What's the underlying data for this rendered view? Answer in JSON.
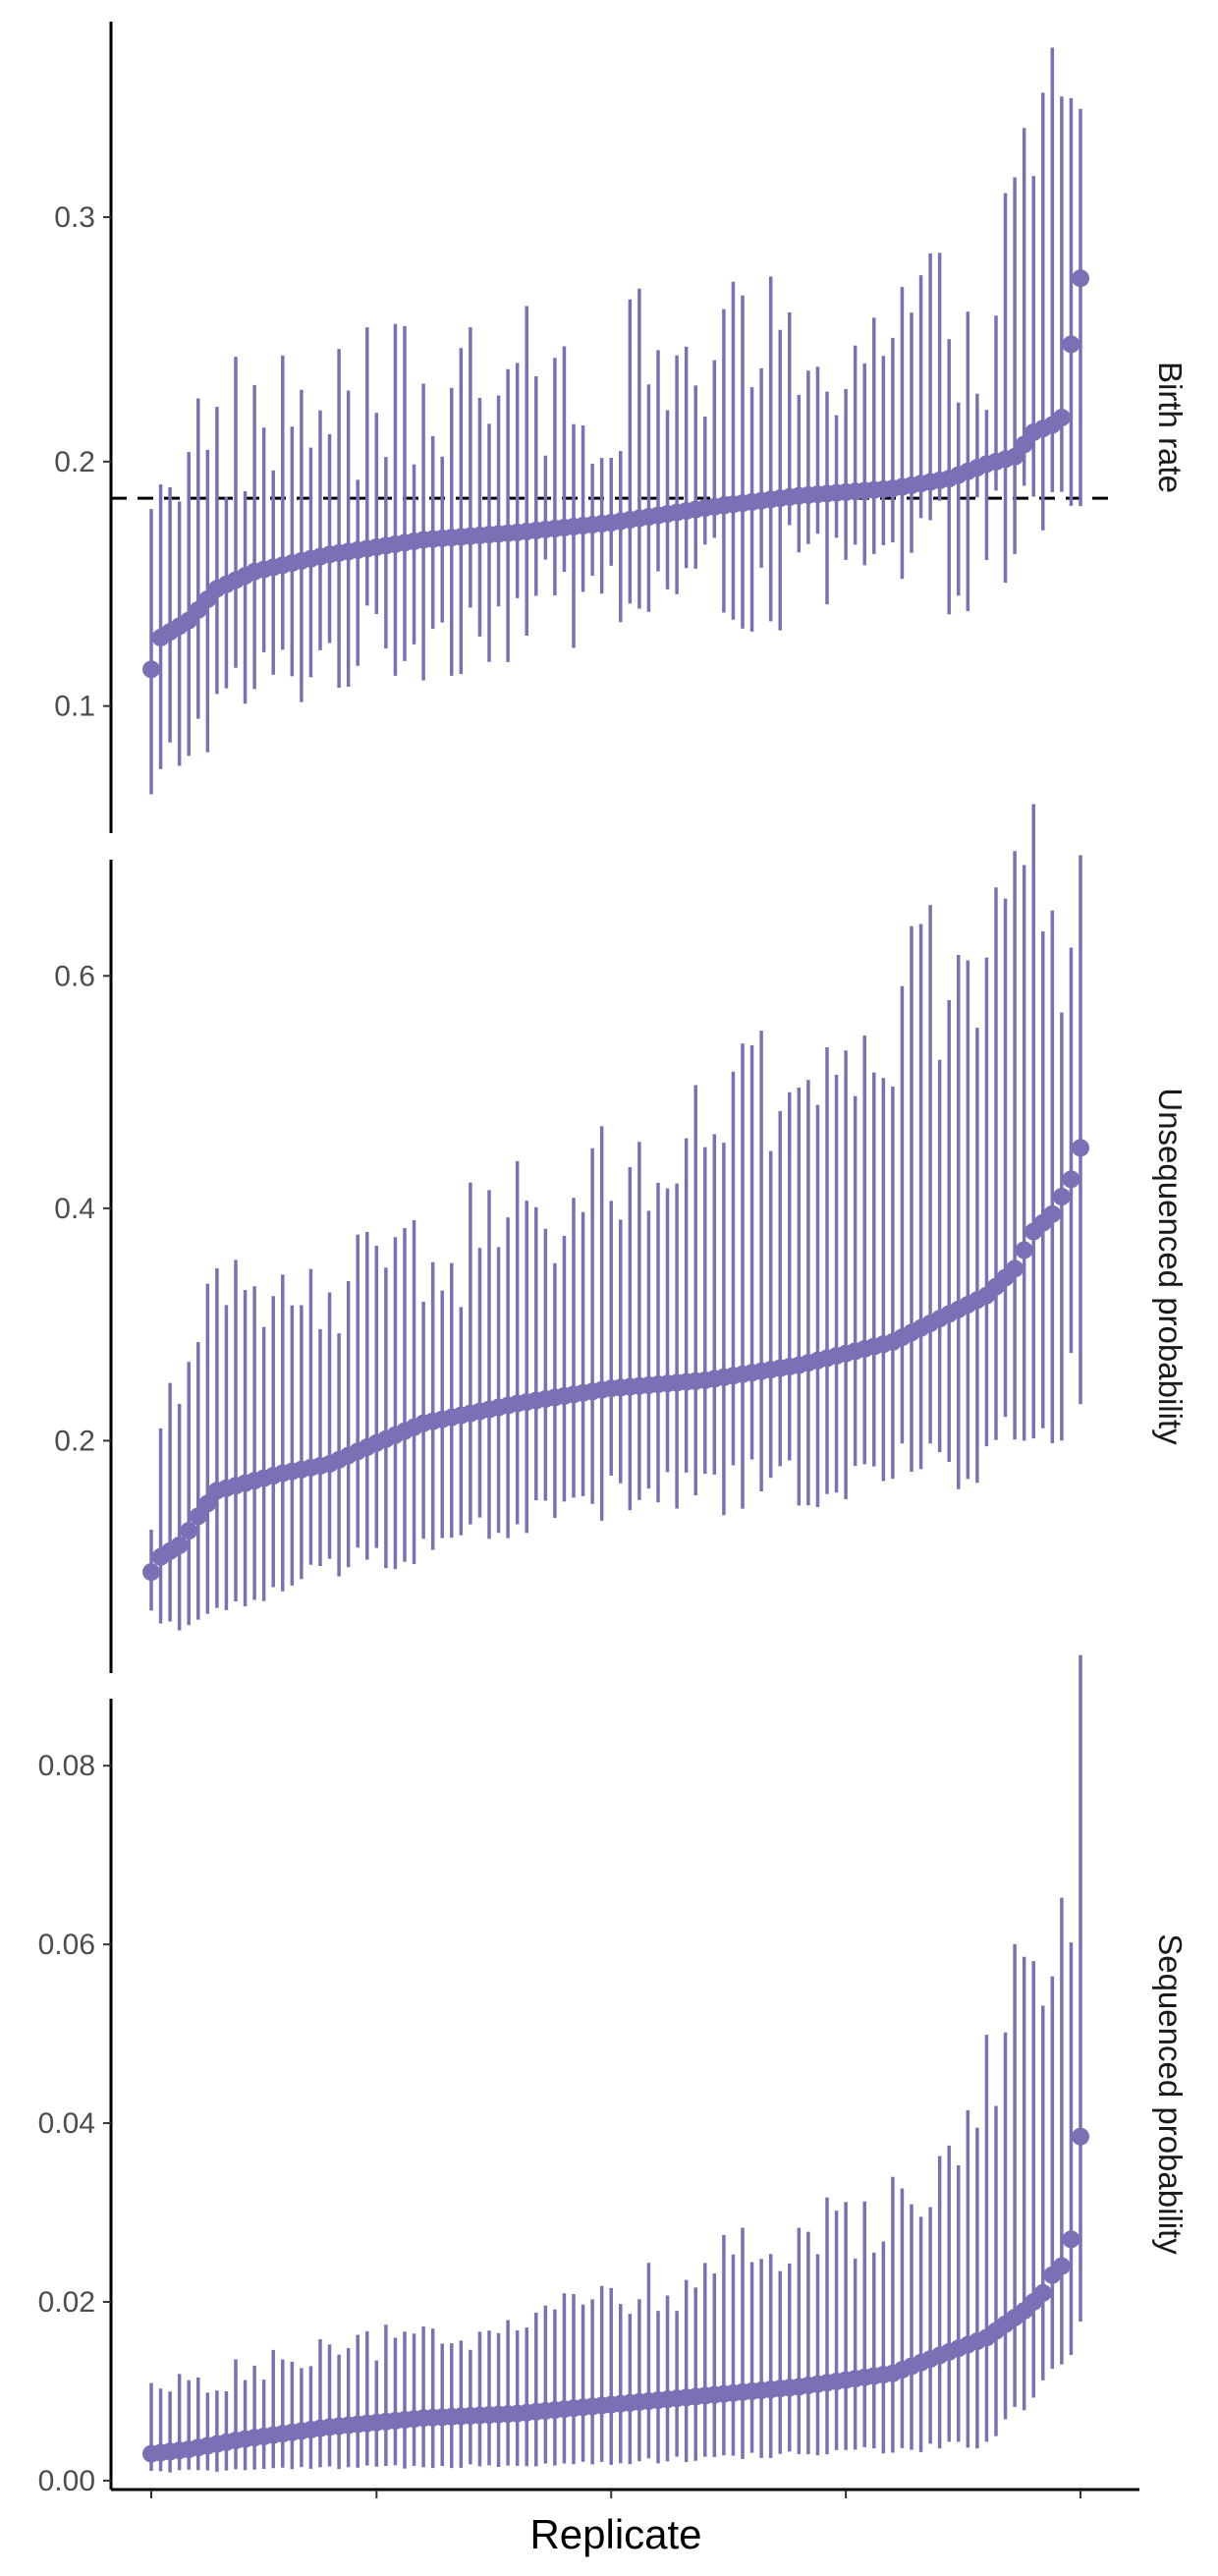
{
  "chart_data": {
    "type": "scatter",
    "layout": "faceted point-range (point estimate with interval), replicates sorted by estimate within each panel",
    "xlabel": "Replicate",
    "x_ticks": [
      1,
      25,
      50,
      75,
      100
    ],
    "x_tick_labels": false,
    "grid": false,
    "color": "#7b70b5",
    "reference_line_color": "#000000",
    "panels": [
      {
        "label": "Birth rate",
        "ylim": [
          0.048,
          0.38
        ],
        "y_ticks": [
          0.1,
          0.2,
          0.3
        ],
        "y_tick_labels": [
          "0.1",
          "0.2",
          "0.3"
        ],
        "reference_line": 0.185,
        "n_points": 100,
        "estimate_knots": [
          [
            1,
            0.115
          ],
          [
            2,
            0.128
          ],
          [
            5,
            0.135
          ],
          [
            8,
            0.148
          ],
          [
            12,
            0.155
          ],
          [
            20,
            0.162
          ],
          [
            30,
            0.168
          ],
          [
            40,
            0.171
          ],
          [
            50,
            0.175
          ],
          [
            60,
            0.181
          ],
          [
            70,
            0.186
          ],
          [
            80,
            0.189
          ],
          [
            86,
            0.193
          ],
          [
            90,
            0.199
          ],
          [
            93,
            0.202
          ],
          [
            95,
            0.212
          ],
          [
            97,
            0.215
          ],
          [
            98,
            0.218
          ],
          [
            99,
            0.248
          ],
          [
            100,
            0.275
          ]
        ],
        "lower_knots": [
          [
            1,
            0.06
          ],
          [
            3,
            0.078
          ],
          [
            10,
            0.105
          ],
          [
            20,
            0.12
          ],
          [
            50,
            0.145
          ],
          [
            80,
            0.155
          ],
          [
            100,
            0.175
          ]
        ],
        "upper_knots": [
          [
            1,
            0.198
          ],
          [
            10,
            0.215
          ],
          [
            50,
            0.235
          ],
          [
            90,
            0.255
          ],
          [
            99,
            0.368
          ],
          [
            100,
            0.33
          ]
        ]
      },
      {
        "label": "Unsequenced probability",
        "ylim": [
          0.0,
          0.7
        ],
        "y_ticks": [
          0.2,
          0.4,
          0.6
        ],
        "y_tick_labels": [
          "0.2",
          "0.4",
          "0.6"
        ],
        "n_points": 100,
        "estimate_knots": [
          [
            1,
            0.087
          ],
          [
            2,
            0.1
          ],
          [
            4,
            0.11
          ],
          [
            6,
            0.135
          ],
          [
            8,
            0.157
          ],
          [
            15,
            0.172
          ],
          [
            20,
            0.18
          ],
          [
            25,
            0.198
          ],
          [
            30,
            0.215
          ],
          [
            40,
            0.232
          ],
          [
            50,
            0.245
          ],
          [
            60,
            0.252
          ],
          [
            70,
            0.265
          ],
          [
            80,
            0.285
          ],
          [
            85,
            0.305
          ],
          [
            90,
            0.325
          ],
          [
            93,
            0.348
          ],
          [
            95,
            0.38
          ],
          [
            97,
            0.395
          ],
          [
            98,
            0.41
          ],
          [
            99,
            0.425
          ],
          [
            100,
            0.452
          ]
        ],
        "lower_knots": [
          [
            1,
            0.05
          ],
          [
            5,
            0.04
          ],
          [
            20,
            0.09
          ],
          [
            50,
            0.15
          ],
          [
            80,
            0.17
          ],
          [
            95,
            0.2
          ],
          [
            100,
            0.25
          ]
        ],
        "upper_knots": [
          [
            1,
            0.145
          ],
          [
            5,
            0.31
          ],
          [
            20,
            0.32
          ],
          [
            50,
            0.42
          ],
          [
            80,
            0.55
          ],
          [
            95,
            0.66
          ],
          [
            100,
            0.655
          ]
        ]
      },
      {
        "label": "Sequenced probability",
        "ylim": [
          -0.001,
          0.0875
        ],
        "y_ticks": [
          0.0,
          0.02,
          0.04,
          0.06,
          0.08
        ],
        "y_tick_labels": [
          "0.00",
          "0.02",
          "0.04",
          "0.06",
          "0.08"
        ],
        "n_points": 100,
        "estimate_knots": [
          [
            1,
            0.003
          ],
          [
            5,
            0.0035
          ],
          [
            10,
            0.0045
          ],
          [
            20,
            0.006
          ],
          [
            30,
            0.007
          ],
          [
            40,
            0.0075
          ],
          [
            50,
            0.0085
          ],
          [
            60,
            0.0095
          ],
          [
            70,
            0.0105
          ],
          [
            80,
            0.012
          ],
          [
            85,
            0.014
          ],
          [
            90,
            0.016
          ],
          [
            94,
            0.019
          ],
          [
            96,
            0.021
          ],
          [
            97,
            0.023
          ],
          [
            98,
            0.024
          ],
          [
            99,
            0.027
          ],
          [
            100,
            0.0385
          ]
        ],
        "lower_knots": [
          [
            1,
            0.001
          ],
          [
            50,
            0.002
          ],
          [
            90,
            0.004
          ],
          [
            100,
            0.016
          ]
        ],
        "upper_knots": [
          [
            1,
            0.01
          ],
          [
            20,
            0.014
          ],
          [
            50,
            0.02
          ],
          [
            80,
            0.03
          ],
          [
            90,
            0.045
          ],
          [
            95,
            0.06
          ],
          [
            99,
            0.063
          ],
          [
            100,
            0.0835
          ]
        ]
      }
    ]
  }
}
